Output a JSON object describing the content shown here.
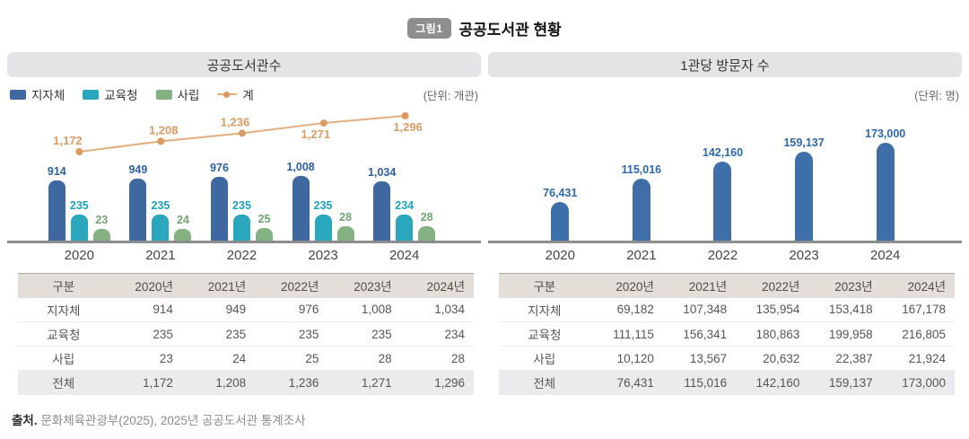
{
  "figure": {
    "badge": "그림1",
    "title": "공공도서관 현황"
  },
  "panels": {
    "left": {
      "header": "공공도서관수",
      "unit": "(단위: 개관)",
      "table": {
        "columns": [
          "구분",
          "2020년",
          "2021년",
          "2022년",
          "2023년",
          "2024년"
        ],
        "rows": [
          {
            "label": "지자체",
            "values": [
              914,
              949,
              976,
              1008,
              1034
            ]
          },
          {
            "label": "교육청",
            "values": [
              235,
              235,
              235,
              235,
              234
            ]
          },
          {
            "label": "사립",
            "values": [
              23,
              24,
              25,
              28,
              28
            ]
          }
        ],
        "total": {
          "label": "전체",
          "values": [
            1172,
            1208,
            1236,
            1271,
            1296
          ]
        }
      }
    },
    "right": {
      "header": "1관당 방문자 수",
      "unit": "(단위: 명)",
      "table": {
        "columns": [
          "구분",
          "2020년",
          "2021년",
          "2022년",
          "2023년",
          "2024년"
        ],
        "rows": [
          {
            "label": "지자체",
            "values": [
              69182,
              107348,
              135954,
              153418,
              167178
            ]
          },
          {
            "label": "교육청",
            "values": [
              111115,
              156341,
              180863,
              199958,
              216805
            ]
          },
          {
            "label": "사립",
            "values": [
              10120,
              13567,
              20632,
              22387,
              21924
            ]
          }
        ],
        "total": {
          "label": "전체",
          "values": [
            76431,
            115016,
            142160,
            159137,
            173000
          ]
        }
      }
    }
  },
  "chart_data": [
    {
      "type": "bar",
      "title": "공공도서관수",
      "unit_label": "(단위: 개관)",
      "categories": [
        "2020",
        "2021",
        "2022",
        "2023",
        "2024"
      ],
      "series": [
        {
          "name": "지자체",
          "kind": "bar",
          "color": "#3f68a0",
          "label_color": "#2d5f9e",
          "values": [
            914,
            949,
            976,
            1008,
            1034
          ]
        },
        {
          "name": "교육청",
          "kind": "bar",
          "color": "#2aa7bd",
          "label_color": "#1ba1bd",
          "values": [
            235,
            235,
            235,
            235,
            234
          ]
        },
        {
          "name": "사립",
          "kind": "bar",
          "color": "#85b283",
          "label_color": "#6fa573",
          "values": [
            23,
            24,
            25,
            28,
            28
          ]
        },
        {
          "name": "계",
          "kind": "line",
          "color": "#e2ae7e",
          "dot_color": "#db9a5f",
          "label_color": "#d99c63",
          "values": [
            1172,
            1208,
            1236,
            1271,
            1296
          ]
        }
      ],
      "legend_position": "top-left",
      "grid": false,
      "xlabel": "",
      "ylabel": ""
    },
    {
      "type": "bar",
      "title": "1관당 방문자 수",
      "unit_label": "(단위: 명)",
      "categories": [
        "2020",
        "2021",
        "2022",
        "2023",
        "2024"
      ],
      "series": [
        {
          "name": "전체",
          "kind": "bar",
          "color": "#3e6fa9",
          "label_color": "#2d68ad",
          "values": [
            76431,
            115016,
            142160,
            159137,
            173000
          ]
        }
      ],
      "legend_position": "none",
      "grid": false,
      "xlabel": "",
      "ylabel": ""
    }
  ],
  "source": {
    "prefix": "출처.",
    "text": "문화체육관광부(2025), 2025년 공공도서관 통계조사"
  }
}
